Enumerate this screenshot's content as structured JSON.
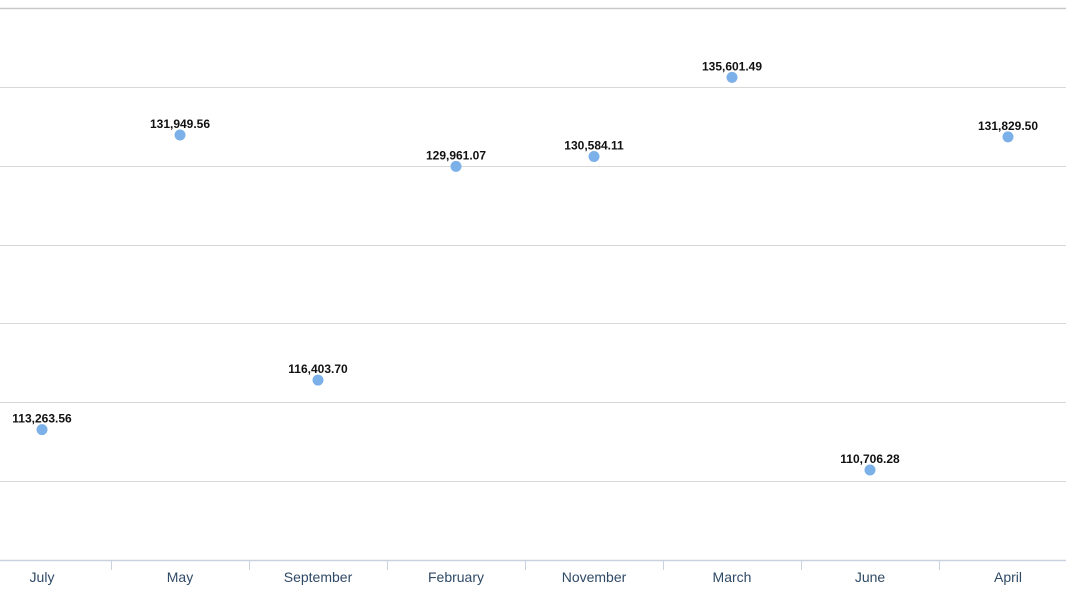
{
  "chart_data": {
    "type": "scatter",
    "categories": [
      "July",
      "May",
      "September",
      "February",
      "November",
      "March",
      "June",
      "April"
    ],
    "values": [
      113263.56,
      131949.56,
      116403.7,
      129961.07,
      130584.11,
      135601.49,
      110706.28,
      131829.5
    ],
    "data_labels": [
      "113,263.56",
      "131,949.56",
      "116,403.70",
      "129,961.07",
      "130,584.11",
      "135,601.49",
      "110,706.28",
      "131,829.50"
    ],
    "title": "",
    "xlabel": "",
    "ylabel": "",
    "ylim": [
      105000,
      140000
    ],
    "ytick_step": 5000,
    "grid": true,
    "legend": "none",
    "colors": {
      "point": "#7cb0e8",
      "grid": "#d8d8d8",
      "axis": "#c9d3df",
      "category_text": "#2f4a66",
      "label_text": "#111111"
    }
  }
}
